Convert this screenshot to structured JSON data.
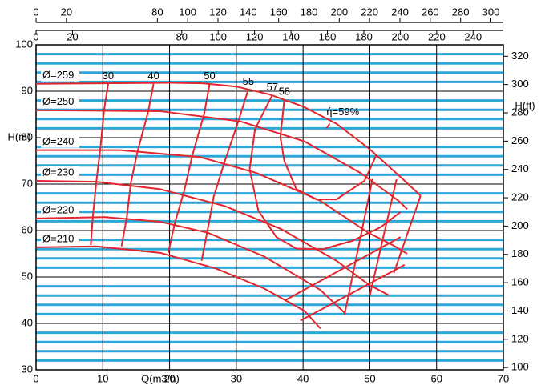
{
  "chart_data": {
    "type": "line",
    "x_label": "Q(m3/h)",
    "y_label": "H(m)",
    "y2_label": "H(ft)",
    "xlim": [
      0,
      70
    ],
    "xticks": [
      0,
      10,
      20,
      30,
      40,
      50,
      60,
      70
    ],
    "ylim": [
      30,
      100
    ],
    "yticks": [
      30,
      40,
      50,
      60,
      70,
      80,
      90,
      100
    ],
    "minor_yticks": [
      32,
      34,
      36,
      38,
      42,
      44,
      46,
      48,
      52,
      54,
      56,
      58,
      62,
      64,
      66,
      68,
      72,
      74,
      76,
      78,
      82,
      84,
      86,
      88,
      92,
      94,
      96,
      98
    ],
    "y2lim": [
      98.4,
      328.1
    ],
    "y2ticks": [
      100,
      120,
      140,
      160,
      180,
      200,
      220,
      240,
      260,
      280,
      300,
      320
    ],
    "top_axes": [
      {
        "lim": [
          0,
          308.2
        ],
        "ticks": [
          0,
          20,
          80,
          100,
          120,
          140,
          160,
          180,
          200,
          220,
          240,
          260,
          280,
          300
        ]
      },
      {
        "lim": [
          0,
          256.6
        ],
        "ticks": [
          0,
          20,
          80,
          100,
          120,
          140,
          160,
          180,
          200,
          220,
          240
        ]
      }
    ],
    "grid": true,
    "major_grid_color": "#000000",
    "minor_grid_color": "#2aa7d8",
    "color": "#e3262e",
    "series": [
      {
        "name": "Ø=259",
        "kind": "head",
        "x": [
          0,
          10,
          20,
          25,
          30,
          35,
          40,
          45,
          50,
          55,
          57.6
        ],
        "y": [
          91.6,
          91.7,
          91.8,
          91.7,
          91,
          89.3,
          86.7,
          83,
          77.5,
          71,
          67.5
        ]
      },
      {
        "name": "Ø=250",
        "kind": "head",
        "x": [
          0,
          10,
          18.6,
          30.6,
          40.2,
          48.6,
          54.3,
          55.6
        ],
        "y": [
          85.9,
          85.8,
          85.7,
          83.5,
          79.2,
          72.4,
          66.4,
          64.6
        ]
      },
      {
        "name": "Ø=240",
        "kind": "head",
        "x": [
          0,
          12.6,
          24.6,
          33,
          42.6,
          49.8,
          53.4,
          55.6
        ],
        "y": [
          77.3,
          77.3,
          75.8,
          72.4,
          66.4,
          59.5,
          56.9,
          55
        ]
      },
      {
        "name": "Ø=230",
        "kind": "head",
        "x": [
          0,
          9,
          18.6,
          28.2,
          36.6,
          45,
          49.8,
          52.8
        ],
        "y": [
          70.7,
          70.5,
          68.9,
          65.3,
          60.4,
          53.5,
          48.4,
          46.1
        ]
      },
      {
        "name": "Ø=220",
        "kind": "head",
        "x": [
          0,
          10.2,
          18.6,
          25.8,
          34.2,
          42.6,
          46.2
        ],
        "y": [
          62.6,
          62.9,
          61.9,
          59.5,
          54.4,
          47.2,
          42.3
        ]
      },
      {
        "name": "Ø=210",
        "kind": "head",
        "x": [
          0,
          9,
          18.6,
          27,
          34.2,
          40.2,
          42.6
        ],
        "y": [
          56.4,
          56.6,
          55.2,
          51.8,
          47.5,
          42.7,
          38.9
        ]
      },
      {
        "name": "30",
        "kind": "eff",
        "x": [
          10.8,
          10.2,
          9.6,
          9,
          8.5,
          8.2
        ],
        "y": [
          91.6,
          86,
          77.3,
          70.1,
          62.9,
          56.9
        ]
      },
      {
        "name": "40",
        "kind": "eff",
        "x": [
          17.6,
          16.8,
          15.2,
          14.2,
          13.6,
          12.8
        ],
        "y": [
          91.6,
          85.6,
          77,
          70.3,
          62.9,
          56.6
        ]
      },
      {
        "name": "50",
        "kind": "eff",
        "x": [
          26,
          25.2,
          23.4,
          22.2,
          20.8,
          19.8
        ],
        "y": [
          91.6,
          85.2,
          76.1,
          68.6,
          61.7,
          55.2
        ]
      },
      {
        "name": "55",
        "kind": "eff",
        "x": [
          31.8,
          30.3,
          28.2,
          26.6,
          25.8,
          24.8
        ],
        "y": [
          90.4,
          83.5,
          74.6,
          67.2,
          60.9,
          53.5
        ]
      },
      {
        "name": "57",
        "kind": "eff",
        "x": [
          35.4,
          32.8,
          32,
          33.3,
          36,
          39,
          43,
          47.4,
          51.6,
          54.6
        ],
        "y": [
          89.2,
          81.8,
          73.2,
          64.3,
          58.6,
          56.1,
          56,
          57.8,
          60.7,
          64
        ]
      },
      {
        "name": "58",
        "kind": "eff",
        "x": [
          37.2,
          36.6,
          37.2,
          39,
          42,
          45,
          49.2,
          51
        ],
        "y": [
          88.3,
          80.1,
          74.9,
          68.9,
          66.7,
          66.7,
          70.7,
          76.3
        ]
      },
      {
        "name": "ή=59%",
        "kind": "note",
        "x": [
          43.5,
          44
        ],
        "y": [
          82,
          83
        ]
      }
    ],
    "extra_lines": [
      {
        "x": [
          37.2,
          54.6
        ],
        "y": [
          44.9,
          58.6
        ]
      },
      {
        "x": [
          39.6,
          55.2
        ],
        "y": [
          40.6,
          52.6
        ]
      },
      {
        "x": [
          50.4,
          46.2
        ],
        "y": [
          71.1,
          41.8
        ]
      },
      {
        "x": [
          54,
          50
        ],
        "y": [
          71,
          46
        ]
      },
      {
        "x": [
          57.6,
          53.6
        ],
        "y": [
          67.5,
          50.9
        ]
      }
    ]
  }
}
